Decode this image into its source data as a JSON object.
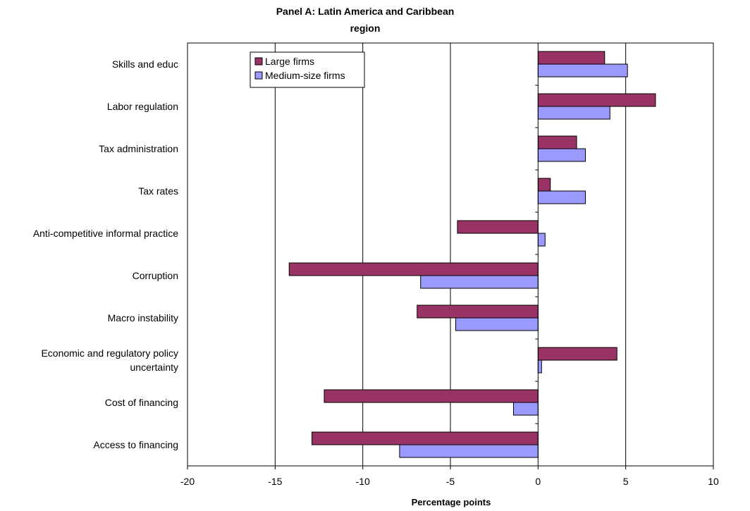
{
  "chart_data": {
    "type": "bar",
    "orientation": "horizontal",
    "title_lines": [
      "Panel A: Latin America and Caribbean",
      "region"
    ],
    "xlabel": "Percentage points",
    "ylabel": "",
    "xlim": [
      -20,
      10
    ],
    "xticks": [
      -20,
      -15,
      -10,
      -5,
      0,
      5,
      10
    ],
    "xtick_labels": [
      "-20",
      "-15",
      "-10",
      "-5",
      "0",
      "5",
      "10"
    ],
    "grid": "vertical major gridlines",
    "legend_position": "top-left (inside plot)",
    "categories": [
      [
        "Skills and educ"
      ],
      [
        "Labor regulation"
      ],
      [
        "Tax administration"
      ],
      [
        "Tax rates"
      ],
      [
        "Anti-competitive informal practice"
      ],
      [
        "Corruption"
      ],
      [
        "Macro instability"
      ],
      [
        "Economic and regulatory policy",
        "uncertainty"
      ],
      [
        "Cost of financing"
      ],
      [
        "Access to financing"
      ]
    ],
    "series": [
      {
        "name": "Large firms",
        "color": "#993366",
        "values": [
          3.8,
          6.7,
          2.2,
          0.7,
          -4.6,
          -14.2,
          -6.9,
          4.5,
          -12.2,
          -12.9
        ]
      },
      {
        "name": "Medium-size firms",
        "color": "#9999FF",
        "values": [
          5.1,
          4.1,
          2.7,
          2.7,
          0.4,
          -6.7,
          -4.7,
          0.2,
          -1.4,
          -7.9
        ]
      }
    ]
  }
}
